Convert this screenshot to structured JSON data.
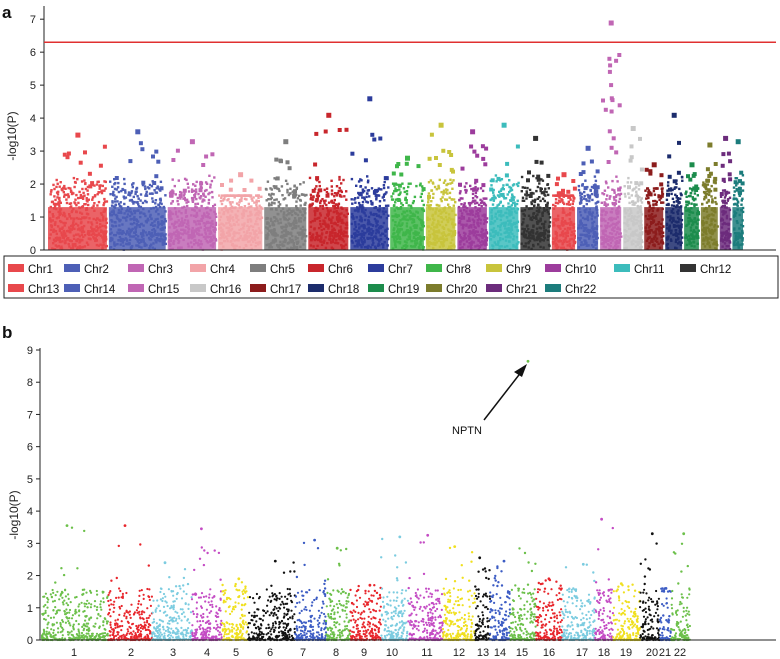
{
  "panel_a": {
    "label": "a",
    "ylabel": "-log10(P)",
    "yticks": [
      "0",
      "1",
      "2",
      "3",
      "4",
      "5",
      "6",
      "7"
    ]
  },
  "panel_b": {
    "label": "b",
    "ylabel": "-log10(P)",
    "yticks": [
      "0",
      "1",
      "2",
      "3",
      "4",
      "5",
      "6",
      "7",
      "8",
      "9"
    ],
    "annotation": "NPTN"
  },
  "chart_data": [
    {
      "type": "scatter",
      "panel": "a",
      "title": "",
      "xlabel": "",
      "ylabel": "-log10(P)",
      "ylim": [
        0,
        7.4
      ],
      "grid": false,
      "threshold": {
        "value": 6.3,
        "color": "#e03030"
      },
      "legend_position": "bottom",
      "series": [
        {
          "name": "Chr1",
          "color": "#e8484c",
          "max": 3.5,
          "width": 29
        },
        {
          "name": "Chr2",
          "color": "#4d5fb6",
          "max": 3.6,
          "width": 28
        },
        {
          "name": "Chr3",
          "color": "#c066b4",
          "max": 3.3,
          "width": 24
        },
        {
          "name": "Chr4",
          "color": "#f2a4a8",
          "max": 2.3,
          "width": 22
        },
        {
          "name": "Chr5",
          "color": "#7e7e7e",
          "max": 3.3,
          "width": 21
        },
        {
          "name": "Chr6",
          "color": "#c8262c",
          "max": 4.1,
          "width": 20
        },
        {
          "name": "Chr7",
          "color": "#2c3c9c",
          "max": 4.6,
          "width": 19
        },
        {
          "name": "Chr8",
          "color": "#3fb64a",
          "max": 2.8,
          "width": 17
        },
        {
          "name": "Chr9",
          "color": "#c8c43c",
          "max": 3.8,
          "width": 15
        },
        {
          "name": "Chr10",
          "color": "#9c3c9c",
          "max": 3.6,
          "width": 15
        },
        {
          "name": "Chr11",
          "color": "#3cbcbc",
          "max": 3.8,
          "width": 15
        },
        {
          "name": "Chr12",
          "color": "#333333",
          "max": 3.4,
          "width": 15
        },
        {
          "name": "Chr13",
          "color": "#e8484c",
          "max": 2.3,
          "width": 12
        },
        {
          "name": "Chr14",
          "color": "#4d5fb6",
          "max": 3.1,
          "width": 11
        },
        {
          "name": "Chr15",
          "color": "#c066b4",
          "max": 6.9,
          "width": 11
        },
        {
          "name": "Chr16",
          "color": "#c8c8c8",
          "max": 3.7,
          "width": 10
        },
        {
          "name": "Chr17",
          "color": "#8c1c1c",
          "max": 2.6,
          "width": 10
        },
        {
          "name": "Chr18",
          "color": "#1c2c6c",
          "max": 4.1,
          "width": 9
        },
        {
          "name": "Chr19",
          "color": "#1c8c4c",
          "max": 2.6,
          "width": 8
        },
        {
          "name": "Chr20",
          "color": "#7c7c2c",
          "max": 3.2,
          "width": 9
        },
        {
          "name": "Chr21",
          "color": "#6c2c7c",
          "max": 3.4,
          "width": 6
        },
        {
          "name": "Chr22",
          "color": "#1c7c7c",
          "max": 3.3,
          "width": 6
        }
      ]
    },
    {
      "type": "scatter",
      "panel": "b",
      "title": "",
      "xlabel": "",
      "ylabel": "-log10(P)",
      "ylim": [
        0,
        9
      ],
      "grid": false,
      "annotation": {
        "text": "NPTN",
        "chromosome": "15",
        "value": 8.65
      },
      "series": [
        {
          "name": "1",
          "color": "#6cc04a",
          "max": 3.55
        },
        {
          "name": "2",
          "color": "#e8262c",
          "max": 3.55
        },
        {
          "name": "3",
          "color": "#7ccce0",
          "max": 2.4
        },
        {
          "name": "4",
          "color": "#c44cc4",
          "max": 3.45
        },
        {
          "name": "5",
          "color": "#f0e020",
          "max": 1.9
        },
        {
          "name": "6",
          "color": "#111111",
          "max": 2.45
        },
        {
          "name": "7",
          "color": "#3c5cc4",
          "max": 3.1
        },
        {
          "name": "8",
          "color": "#6cc04a",
          "max": 2.85
        },
        {
          "name": "9",
          "color": "#e8262c",
          "max": 1.7
        },
        {
          "name": "10",
          "color": "#7ccce0",
          "max": 3.2
        },
        {
          "name": "11",
          "color": "#c44cc4",
          "max": 3.25
        },
        {
          "name": "12",
          "color": "#f0e020",
          "max": 2.9
        },
        {
          "name": "13",
          "color": "#111111",
          "max": 2.55
        },
        {
          "name": "14",
          "color": "#3c5cc4",
          "max": 2.45
        },
        {
          "name": "15",
          "color": "#6cc04a",
          "max": 8.65
        },
        {
          "name": "16",
          "color": "#e8262c",
          "max": 1.9
        },
        {
          "name": "17",
          "color": "#7ccce0",
          "max": 2.35
        },
        {
          "name": "18",
          "color": "#c44cc4",
          "max": 3.75
        },
        {
          "name": "19",
          "color": "#f0e020",
          "max": 1.75
        },
        {
          "name": "20",
          "color": "#111111",
          "max": 3.3
        },
        {
          "name": "21",
          "color": "#3c5cc4",
          "max": 1.6
        },
        {
          "name": "22",
          "color": "#6cc04a",
          "max": 3.3
        }
      ]
    }
  ]
}
